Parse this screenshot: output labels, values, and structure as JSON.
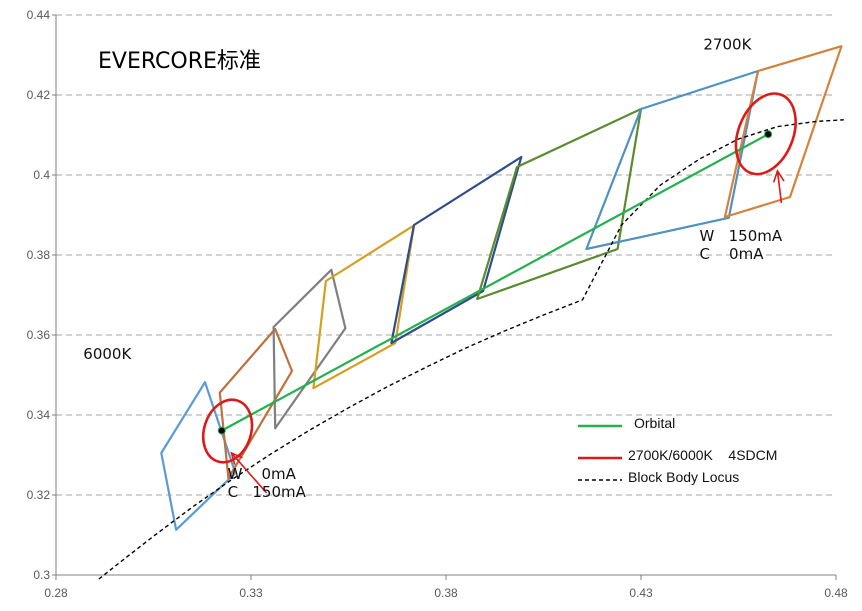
{
  "chart_data": {
    "type": "scatter",
    "title": "EVERCORE标准",
    "xlim": [
      0.28,
      0.48
    ],
    "ylim": [
      0.3,
      0.44
    ],
    "x_ticks": [
      "0.28",
      "0.33",
      "0.38",
      "0.43",
      "0.48"
    ],
    "y_ticks": [
      "0.3",
      "0.32",
      "0.34",
      "0.36",
      "0.38",
      "0.4",
      "0.42",
      "0.44"
    ],
    "grid": "horizontal dashed",
    "legend_position": "bottom-right",
    "legend": [
      "Orbital",
      "2700K/6000K    4SDCM",
      "Block Body Locus"
    ],
    "colors": {
      "orbital": "#22b14c",
      "ellipse": "#dd1a1a",
      "locus": "#000000",
      "grid": "#a6a6a6",
      "axis": "#808080"
    },
    "orbital": {
      "name": "Orbital",
      "x": [
        0.3225,
        0.4626
      ],
      "y": [
        0.3361,
        0.4102
      ]
    },
    "locus": {
      "name": "Block Body Locus",
      "x": [
        0.291,
        0.2975,
        0.305,
        0.315,
        0.325,
        0.335,
        0.345,
        0.355,
        0.365,
        0.375,
        0.385,
        0.395,
        0.405,
        0.415,
        0.425,
        0.435,
        0.445,
        0.455,
        0.465,
        0.475,
        0.482
      ],
      "y": [
        0.299,
        0.304,
        0.3097,
        0.317,
        0.3238,
        0.3302,
        0.3362,
        0.3418,
        0.3471,
        0.352,
        0.3567,
        0.361,
        0.365,
        0.3688,
        0.3875,
        0.3975,
        0.404,
        0.409,
        0.4121,
        0.4134,
        0.4138
      ]
    },
    "quadrangles": [
      {
        "color": "#5b9bd5",
        "x": [
          0.307,
          0.3182,
          0.326,
          0.3108
        ],
        "y": [
          0.3305,
          0.3482,
          0.3255,
          0.3113
        ]
      },
      {
        "color": "#c0703a",
        "x": [
          0.322,
          0.3362,
          0.3405,
          0.3242
        ],
        "y": [
          0.3456,
          0.3615,
          0.351,
          0.3242
        ]
      },
      {
        "color": "#7f7f7f",
        "x": [
          0.3358,
          0.3506,
          0.3542,
          0.3362
        ],
        "y": [
          0.362,
          0.3763,
          0.3617,
          0.3367
        ]
      },
      {
        "color": "#d4a020",
        "x": [
          0.3492,
          0.3718,
          0.367,
          0.346
        ],
        "y": [
          0.3735,
          0.3874,
          0.358,
          0.3467
        ]
      },
      {
        "color": "#2e4d8a",
        "x": [
          0.3718,
          0.3993,
          0.3895,
          0.366
        ],
        "y": [
          0.3875,
          0.4045,
          0.371,
          0.358
        ]
      },
      {
        "color": "#5a8c2e",
        "x": [
          0.3982,
          0.43,
          0.424,
          0.388
        ],
        "y": [
          0.402,
          0.4165,
          0.3815,
          0.369
        ]
      },
      {
        "color": "#4f91c0",
        "x": [
          0.43,
          0.46,
          0.4525,
          0.416
        ],
        "y": [
          0.4165,
          0.426,
          0.3893,
          0.3815
        ]
      },
      {
        "color": "#d5823c",
        "x": [
          0.46,
          0.4814,
          0.4682,
          0.4515
        ],
        "y": [
          0.426,
          0.4322,
          0.3945,
          0.3895
        ]
      }
    ],
    "ellipses": [
      {
        "name": "6000K",
        "cx": 0.324,
        "cy": 0.336,
        "rx": 0.006,
        "ry": 0.008,
        "rotate": 18
      },
      {
        "name": "2700K",
        "cx": 0.462,
        "cy": 0.4103,
        "rx": 0.007,
        "ry": 0.0105,
        "rotate": 22
      }
    ],
    "points": [
      {
        "x": 0.3225,
        "y": 0.3361
      },
      {
        "x": 0.4626,
        "y": 0.4102
      }
    ],
    "annotations": [
      {
        "text": "6000K",
        "x": 0.287,
        "y": 0.354
      },
      {
        "text": "2700K",
        "x": 0.446,
        "y": 0.4314
      },
      {
        "text": "W    0mA",
        "x": 0.324,
        "y": 0.324
      },
      {
        "text": "C   150mA",
        "x": 0.324,
        "y": 0.3195
      },
      {
        "text": "W   150mA",
        "x": 0.445,
        "y": 0.3835
      },
      {
        "text": "C    0mA",
        "x": 0.445,
        "y": 0.379
      }
    ],
    "arrows": [
      {
        "x1": 0.334,
        "y1": 0.3205,
        "x2": 0.325,
        "y2": 0.3305
      },
      {
        "x1": 0.466,
        "y1": 0.393,
        "x2": 0.465,
        "y2": 0.401
      }
    ]
  }
}
